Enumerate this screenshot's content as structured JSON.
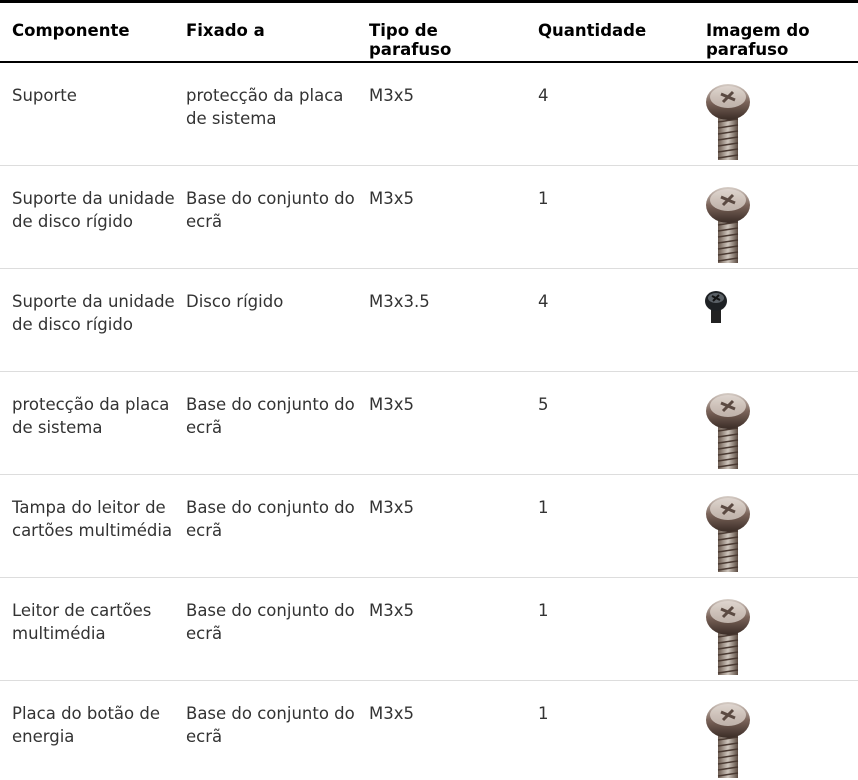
{
  "table": {
    "header": [
      "Componente",
      "Fixado a",
      "Tipo de parafuso",
      "Quantidade",
      "Imagem do parafuso"
    ],
    "rows": [
      [
        "Suporte",
        "protecção da placa de sistema",
        "M3x5",
        4
      ],
      [
        "Suporte da unidade de disco rígido",
        "Base do conjunto do ecrã",
        "M3x5",
        1
      ],
      [
        "Suporte da unidade de disco rígido",
        "Disco rígido",
        "M3x3.5",
        4
      ],
      [
        "protecção da placa de sistema",
        "Base do conjunto do ecrã",
        "M3x5",
        5
      ],
      [
        "Tampa do leitor de cartões multimédia",
        "Base do conjunto do ecrã",
        "M3x5",
        1
      ],
      [
        "Leitor de cartões multimédia",
        "Base do conjunto do ecrã",
        "M3x5",
        1
      ],
      [
        "Placa do botão de energia",
        "Base do conjunto do ecrã",
        "M3x5",
        1
      ]
    ]
  }
}
